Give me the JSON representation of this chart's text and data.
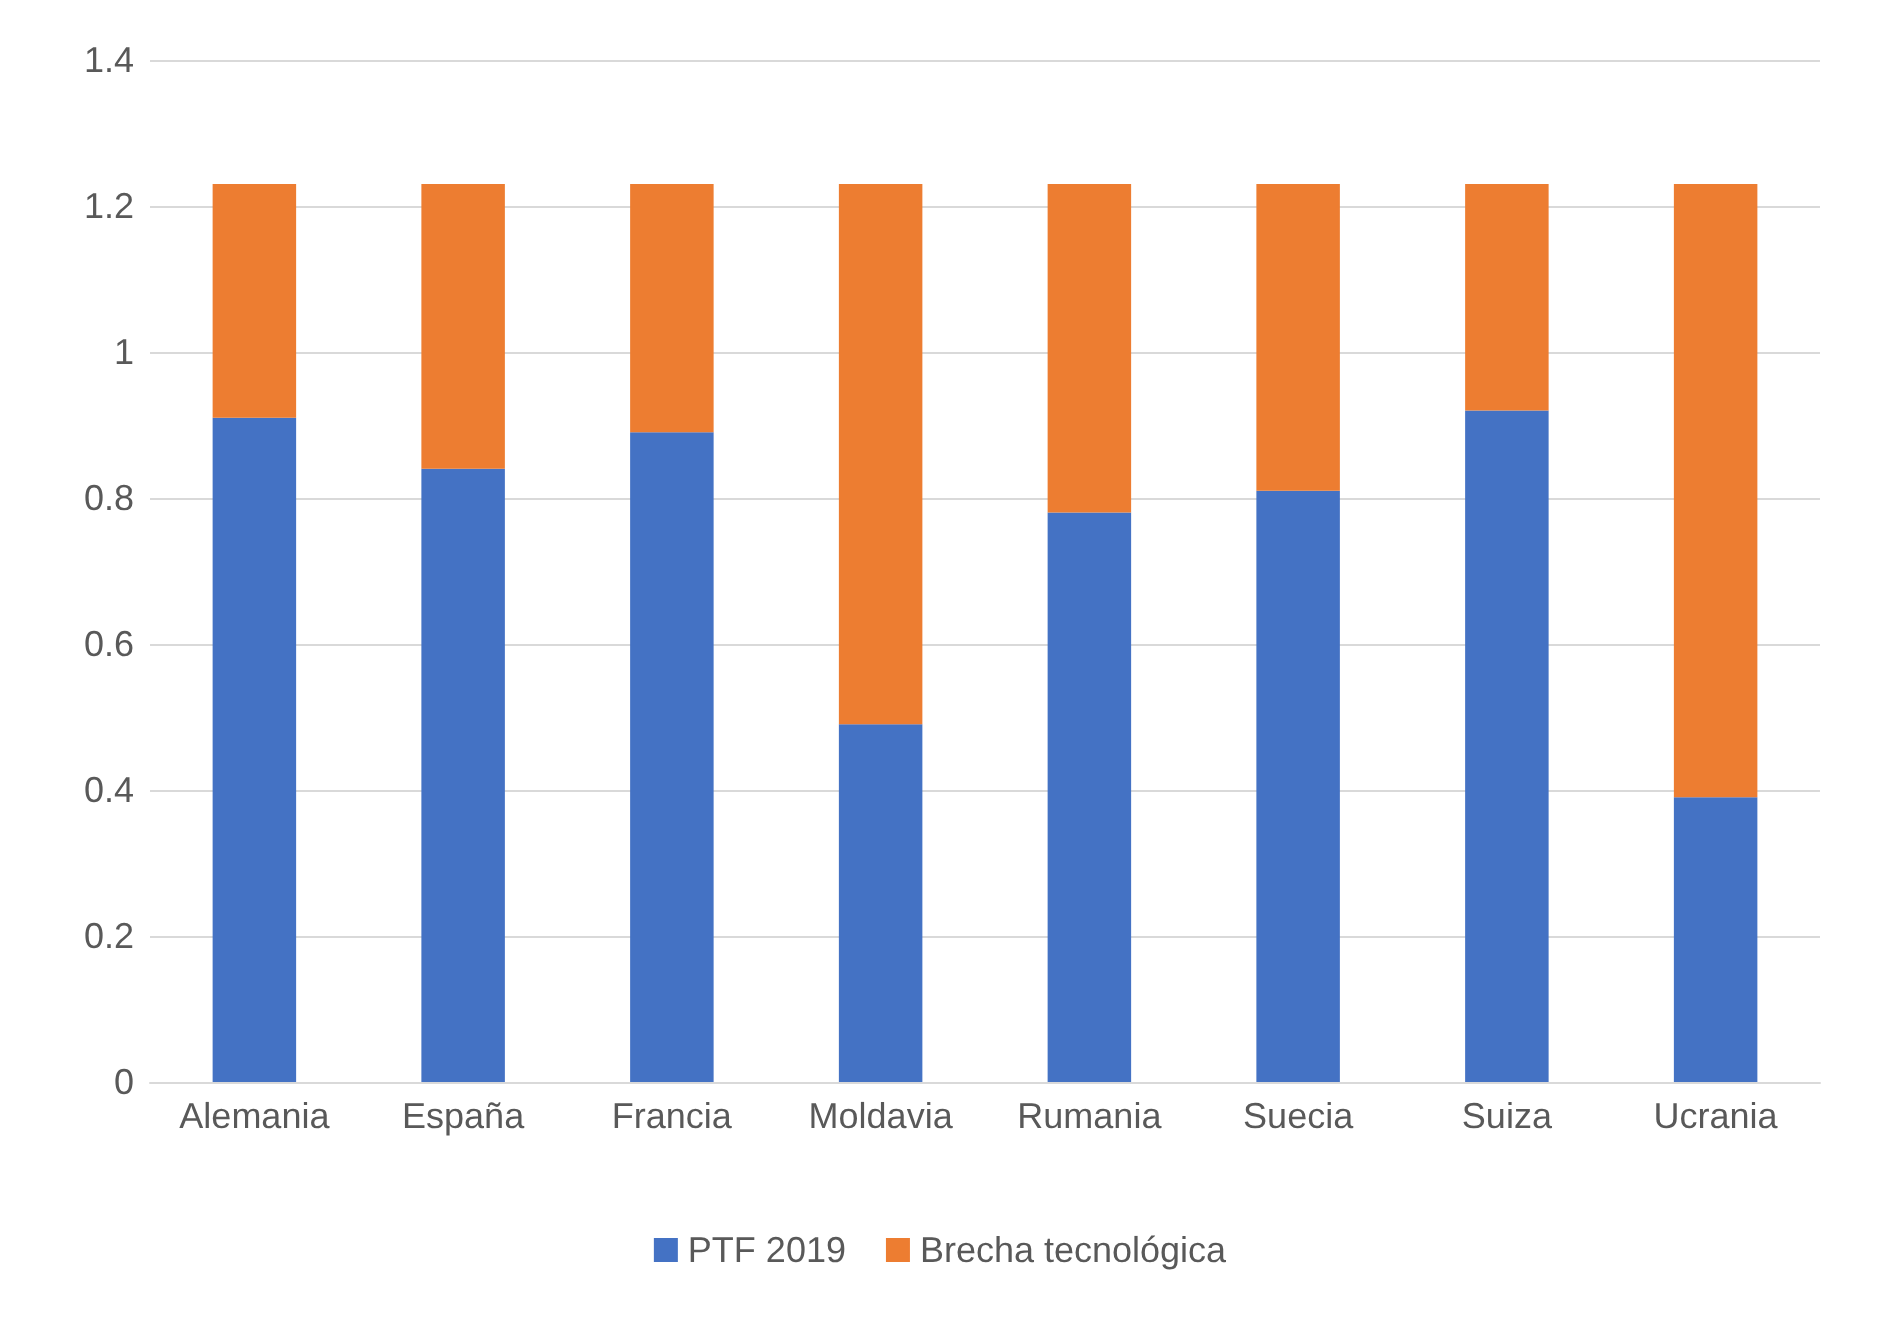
{
  "chart_data": {
    "type": "bar",
    "stacked": true,
    "categories": [
      "Alemania",
      "España",
      "Francia",
      "Moldavia",
      "Rumania",
      "Suecia",
      "Suiza",
      "Ucrania"
    ],
    "series": [
      {
        "name": "PTF 2019",
        "color": "#4472c4",
        "values": [
          0.91,
          0.84,
          0.89,
          0.49,
          0.78,
          0.81,
          0.92,
          0.39
        ]
      },
      {
        "name": "Brecha tecnológica",
        "color": "#ed7d31",
        "values": [
          0.32,
          0.39,
          0.34,
          0.74,
          0.45,
          0.42,
          0.31,
          0.84
        ]
      }
    ],
    "ylim": [
      0,
      1.4
    ],
    "yticks": [
      0,
      0.2,
      0.4,
      0.6,
      0.8,
      1,
      1.2,
      1.4
    ],
    "grid": "y",
    "legend": "bottom"
  }
}
